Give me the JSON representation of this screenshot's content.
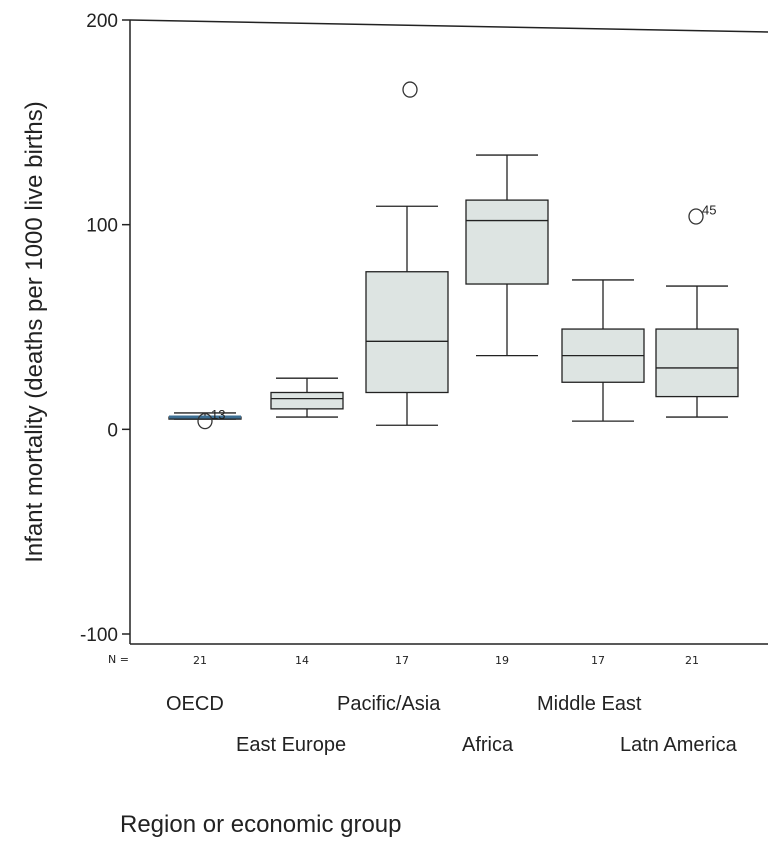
{
  "chart_data": {
    "type": "boxplot",
    "title": "",
    "xlabel": "Region or economic group",
    "ylabel": "Infant mortality (deaths per 1000 live births)",
    "ylim": [
      -100,
      200
    ],
    "yticks": [
      "-100",
      "0",
      "100",
      "200"
    ],
    "grid": false,
    "n_prefix": "N =",
    "categories": [
      "OECD",
      "East Europe",
      "Pacific/Asia",
      "Africa",
      "Middle East",
      "Latn America"
    ],
    "n": [
      "21",
      "14",
      "17",
      "19",
      "17",
      "21"
    ],
    "boxes": [
      {
        "min": 5,
        "q1": 5,
        "median": 6,
        "q3": 6,
        "max": 8
      },
      {
        "min": 6,
        "q1": 10,
        "median": 15,
        "q3": 18,
        "max": 25
      },
      {
        "min": 2,
        "q1": 18,
        "median": 43,
        "q3": 77,
        "max": 109
      },
      {
        "min": 36,
        "q1": 71,
        "median": 102,
        "q3": 112,
        "max": 134
      },
      {
        "min": 4,
        "q1": 23,
        "median": 36,
        "q3": 49,
        "max": 73
      },
      {
        "min": 6,
        "q1": 16,
        "median": 30,
        "q3": 49,
        "max": 70
      }
    ],
    "outliers": [
      {
        "category": "OECD",
        "value": 4,
        "label": "13"
      },
      {
        "category": "Pacific/Asia",
        "value": 166,
        "label": ""
      },
      {
        "category": "Latn America",
        "value": 104,
        "label": "45"
      }
    ],
    "colors": {
      "box_fill": "#dde4e2",
      "stroke": "#222222",
      "oecd_median": "#3d6f93"
    }
  }
}
